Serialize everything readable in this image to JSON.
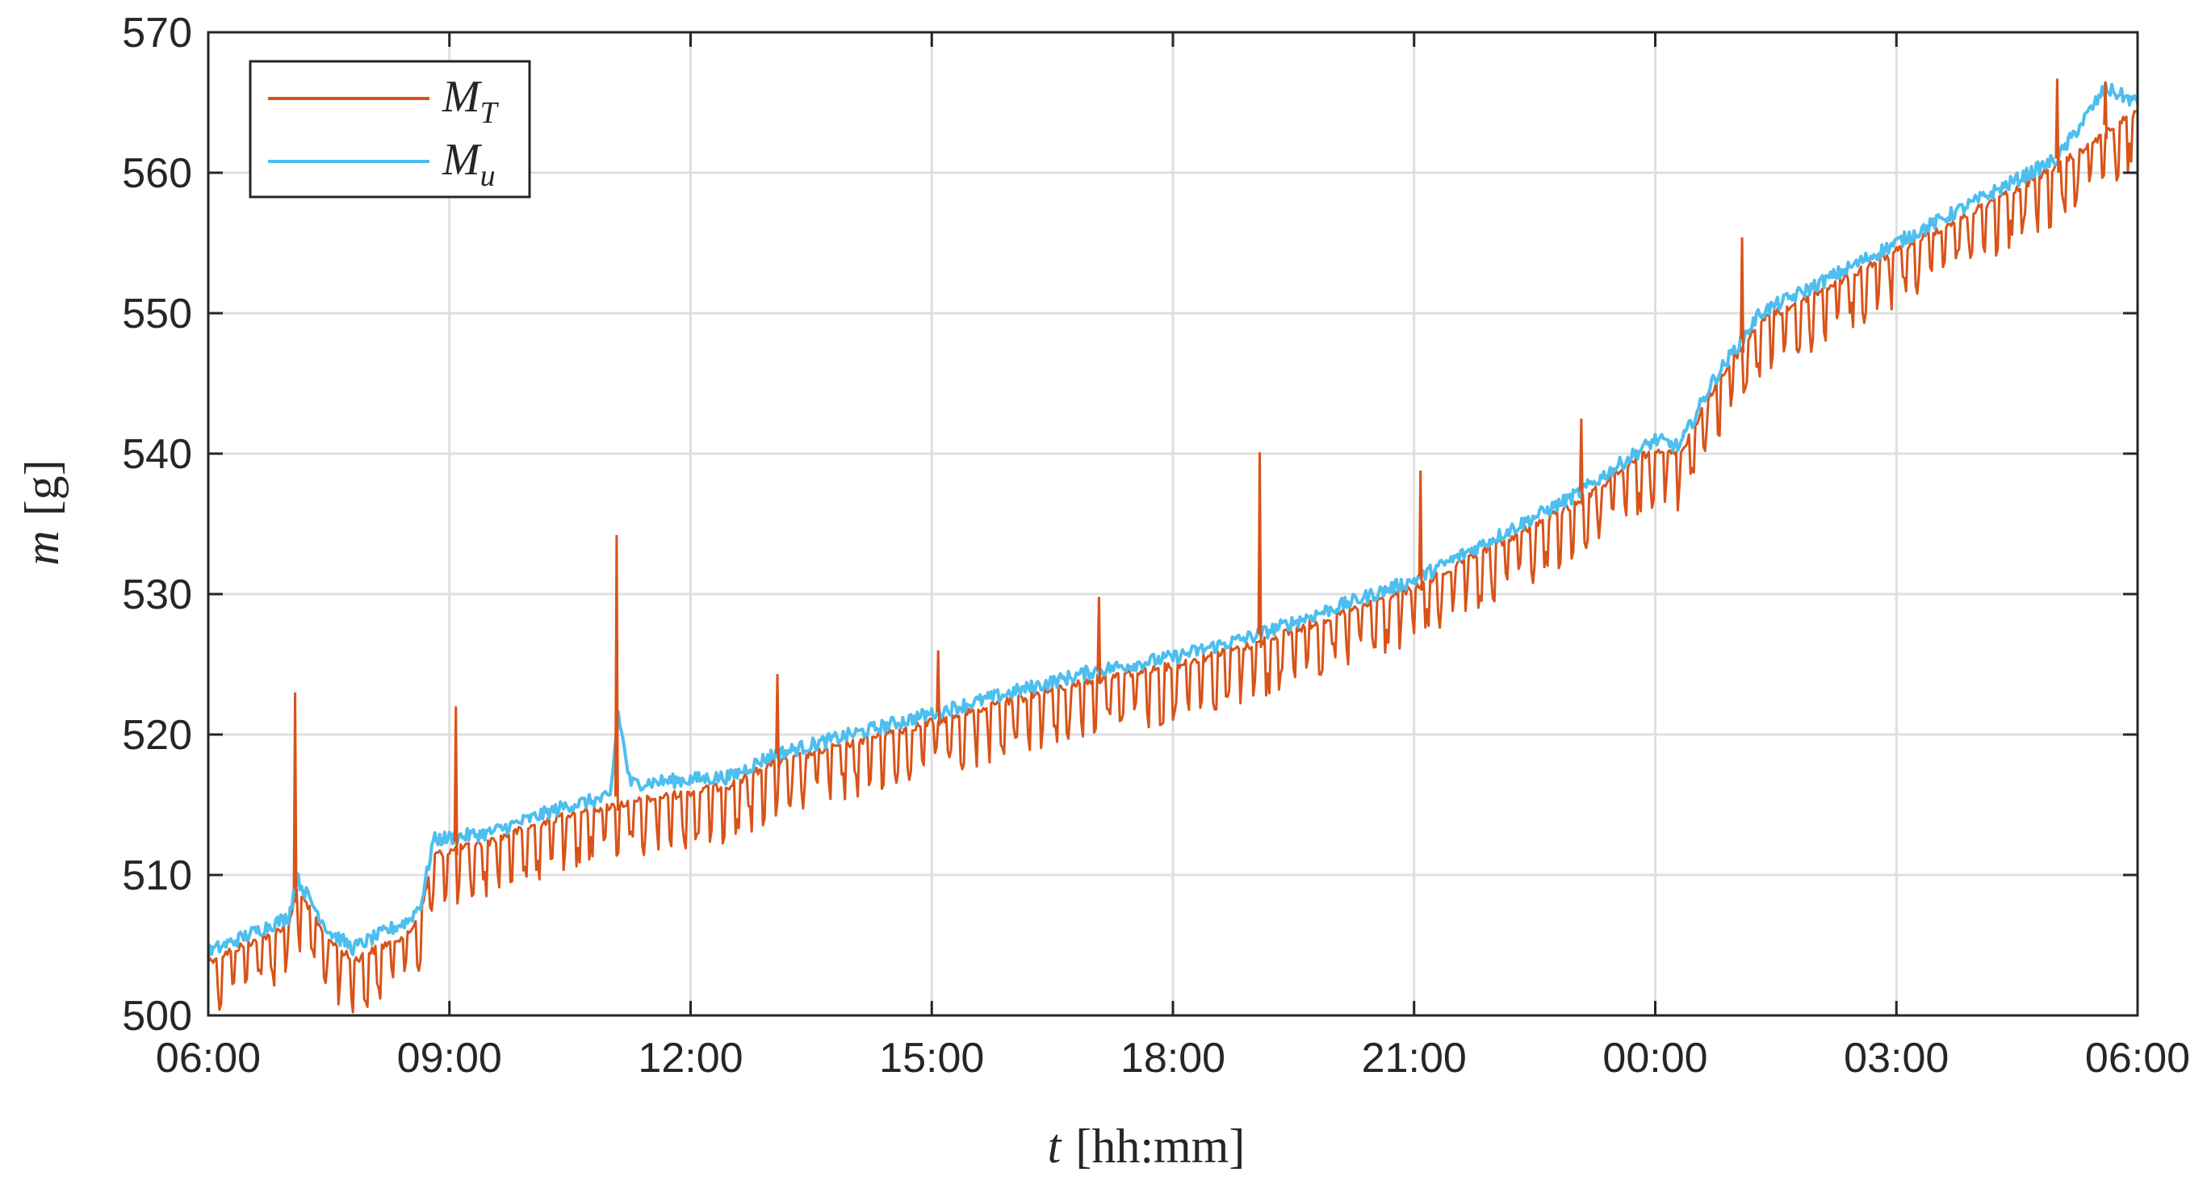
{
  "chart_data": {
    "type": "line",
    "xlabel": {
      "symbol": "t",
      "unit": "[hh:mm]"
    },
    "ylabel": {
      "symbol": "m",
      "unit": "[g]"
    },
    "x_tick_labels": [
      "06:00",
      "09:00",
      "12:00",
      "15:00",
      "18:00",
      "21:00",
      "00:00",
      "03:00",
      "06:00"
    ],
    "x_range_hours": [
      6,
      30
    ],
    "y_ticks": [
      500,
      510,
      520,
      530,
      540,
      550,
      560,
      570
    ],
    "ylim": [
      500,
      570
    ],
    "grid": true,
    "legend_position": "top-left",
    "series": [
      {
        "name": "M",
        "subscript": "T",
        "color": "#D95319",
        "oscillation": "periodic dips of about 3-5 g below the upper envelope throughout",
        "points": [
          [
            6.0,
            504.5
          ],
          [
            7.0,
            507.0
          ],
          [
            7.1,
            509.5
          ],
          [
            7.5,
            506.0
          ],
          [
            7.8,
            504.5
          ],
          [
            8.5,
            506.5
          ],
          [
            8.65,
            508.0
          ],
          [
            8.8,
            512.0
          ],
          [
            9.5,
            513.0
          ],
          [
            10.5,
            515.0
          ],
          [
            11.5,
            516.0
          ],
          [
            12.5,
            517.0
          ],
          [
            13.0,
            518.5
          ],
          [
            14.0,
            520.0
          ],
          [
            15.0,
            521.5
          ],
          [
            16.0,
            523.0
          ],
          [
            17.0,
            524.5
          ],
          [
            18.0,
            525.5
          ],
          [
            19.0,
            527.0
          ],
          [
            20.0,
            529.0
          ],
          [
            21.0,
            531.0
          ],
          [
            22.0,
            534.0
          ],
          [
            23.0,
            537.0
          ],
          [
            24.0,
            541.0
          ],
          [
            24.3,
            540.5
          ],
          [
            24.7,
            545.0
          ],
          [
            25.3,
            550.0
          ],
          [
            26.0,
            552.0
          ],
          [
            27.0,
            555.0
          ],
          [
            28.0,
            558.0
          ],
          [
            29.0,
            561.0
          ],
          [
            30.0,
            565.0
          ]
        ],
        "spikes": [
          [
            7.08,
            523.0
          ],
          [
            9.08,
            522.0
          ],
          [
            11.08,
            534.2
          ],
          [
            13.08,
            524.3
          ],
          [
            15.08,
            526.0
          ],
          [
            17.08,
            529.8
          ],
          [
            19.08,
            540.1
          ],
          [
            21.08,
            538.8
          ],
          [
            23.08,
            542.5
          ],
          [
            25.08,
            555.4
          ],
          [
            29.0,
            566.7
          ],
          [
            29.6,
            566.5
          ]
        ]
      },
      {
        "name": "M",
        "subscript": "u",
        "color": "#4DBEEE",
        "points": [
          [
            6.0,
            504.5
          ],
          [
            7.0,
            507.0
          ],
          [
            7.1,
            509.8
          ],
          [
            7.5,
            506.0
          ],
          [
            7.8,
            504.8
          ],
          [
            8.5,
            506.8
          ],
          [
            8.65,
            508.0
          ],
          [
            8.8,
            512.5
          ],
          [
            9.5,
            513.0
          ],
          [
            10.5,
            515.0
          ],
          [
            11.0,
            515.5
          ],
          [
            11.1,
            521.5
          ],
          [
            11.25,
            516.5
          ],
          [
            12.5,
            517.0
          ],
          [
            13.0,
            518.5
          ],
          [
            14.0,
            520.0
          ],
          [
            15.0,
            521.5
          ],
          [
            16.0,
            523.0
          ],
          [
            17.0,
            524.5
          ],
          [
            18.0,
            525.5
          ],
          [
            19.0,
            527.0
          ],
          [
            20.0,
            529.0
          ],
          [
            21.0,
            531.0
          ],
          [
            22.0,
            534.0
          ],
          [
            23.0,
            537.0
          ],
          [
            24.0,
            541.0
          ],
          [
            24.3,
            540.5
          ],
          [
            24.7,
            545.0
          ],
          [
            25.3,
            550.0
          ],
          [
            26.0,
            552.0
          ],
          [
            27.0,
            555.0
          ],
          [
            28.0,
            558.0
          ],
          [
            29.0,
            561.0
          ],
          [
            29.6,
            566.0
          ],
          [
            30.0,
            565.0
          ]
        ]
      }
    ]
  }
}
